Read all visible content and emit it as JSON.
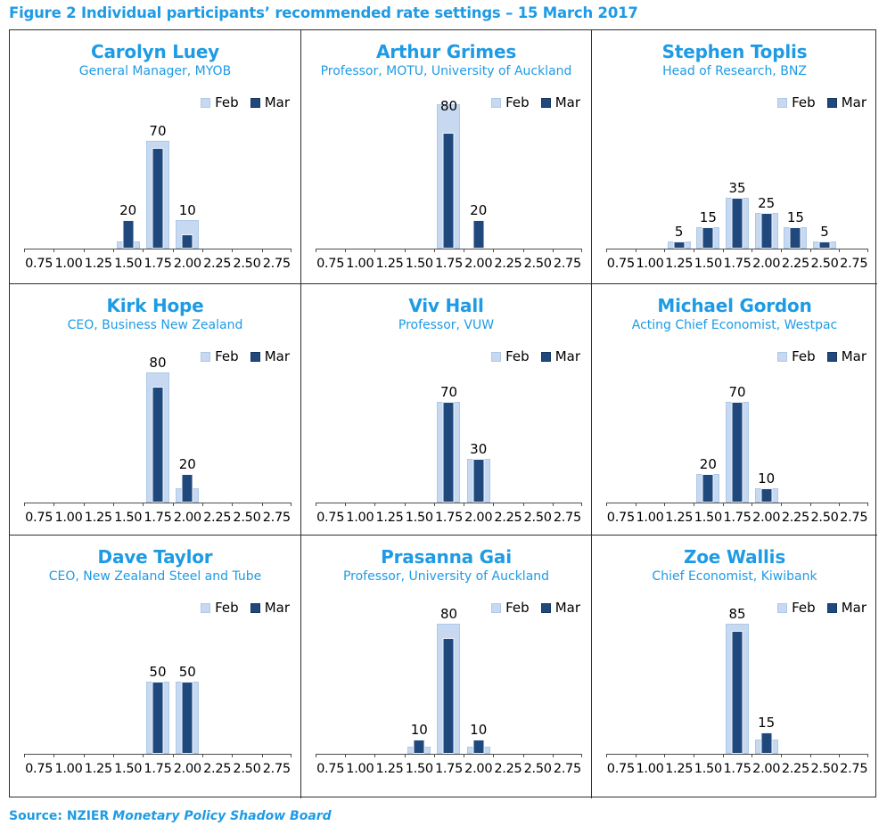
{
  "page_title": "Figure 2 Individual participants’ recommended rate settings – 15 March 2017",
  "source": {
    "prefix": "Source: NZIER",
    "publication": "Monetary Policy Shadow Board"
  },
  "legend": {
    "feb_label": "Feb",
    "mar_label": "Mar"
  },
  "colors": {
    "heading_blue": "#1e9be4",
    "feb_fill": "#c6d9f1",
    "feb_border": "#aec8e8",
    "mar_fill": "#1f497d",
    "mar_border": "#f0f5fc",
    "axis": "#4d4d4d",
    "grid_border": "#2e2e2e"
  },
  "chart_data": [
    {
      "type": "bar",
      "title": "Carolyn Luey",
      "subtitle": "General Manager, MYOB",
      "categories": [
        "0.75",
        "1.00",
        "1.25",
        "1.50",
        "1.75",
        "2.00",
        "2.25",
        "2.50",
        "2.75"
      ],
      "xlabel": "",
      "ylabel": "",
      "ylim": [
        0,
        100
      ],
      "grid": false,
      "legend_position": "top-right",
      "series": [
        {
          "name": "Feb",
          "values": [
            0,
            0,
            0,
            5,
            75,
            20,
            0,
            0,
            0
          ]
        },
        {
          "name": "Mar",
          "values": [
            0,
            0,
            0,
            20,
            70,
            10,
            0,
            0,
            0
          ]
        }
      ],
      "bar_labels": [
        null,
        null,
        null,
        "20",
        "70",
        "10",
        null,
        null,
        null
      ]
    },
    {
      "type": "bar",
      "title": "Arthur Grimes",
      "subtitle": "Professor, MOTU, University of Auckland",
      "categories": [
        "0.75",
        "1.00",
        "1.25",
        "1.50",
        "1.75",
        "2.00",
        "2.25",
        "2.50",
        "2.75"
      ],
      "xlabel": "",
      "ylabel": "",
      "ylim": [
        0,
        100
      ],
      "grid": false,
      "legend_position": "top-right",
      "series": [
        {
          "name": "Feb",
          "values": [
            0,
            0,
            0,
            0,
            100,
            0,
            0,
            0,
            0
          ]
        },
        {
          "name": "Mar",
          "values": [
            0,
            0,
            0,
            0,
            80,
            20,
            0,
            0,
            0
          ]
        }
      ],
      "bar_labels": [
        null,
        null,
        null,
        null,
        "80",
        "20",
        null,
        null,
        null
      ]
    },
    {
      "type": "bar",
      "title": "Stephen Toplis",
      "subtitle": "Head of Research, BNZ",
      "categories": [
        "0.75",
        "1.00",
        "1.25",
        "1.50",
        "1.75",
        "2.00",
        "2.25",
        "2.50",
        "2.75"
      ],
      "xlabel": "",
      "ylabel": "",
      "ylim": [
        0,
        100
      ],
      "grid": false,
      "legend_position": "top-right",
      "series": [
        {
          "name": "Feb",
          "values": [
            0,
            0,
            5,
            15,
            35,
            25,
            15,
            5,
            0
          ]
        },
        {
          "name": "Mar",
          "values": [
            0,
            0,
            5,
            15,
            35,
            25,
            15,
            5,
            0
          ]
        }
      ],
      "bar_labels": [
        null,
        null,
        "5",
        "15",
        "35",
        "25",
        "15",
        "5",
        null
      ]
    },
    {
      "type": "bar",
      "title": "Kirk Hope",
      "subtitle": "CEO, Business New Zealand",
      "categories": [
        "0.75",
        "1.00",
        "1.25",
        "1.50",
        "1.75",
        "2.00",
        "2.25",
        "2.50",
        "2.75"
      ],
      "xlabel": "",
      "ylabel": "",
      "ylim": [
        0,
        100
      ],
      "grid": false,
      "legend_position": "top-right",
      "series": [
        {
          "name": "Feb",
          "values": [
            0,
            0,
            0,
            0,
            90,
            10,
            0,
            0,
            0
          ]
        },
        {
          "name": "Mar",
          "values": [
            0,
            0,
            0,
            0,
            80,
            20,
            0,
            0,
            0
          ]
        }
      ],
      "bar_labels": [
        null,
        null,
        null,
        null,
        "80",
        "20",
        null,
        null,
        null
      ]
    },
    {
      "type": "bar",
      "title": "Viv Hall",
      "subtitle": "Professor, VUW",
      "categories": [
        "0.75",
        "1.00",
        "1.25",
        "1.50",
        "1.75",
        "2.00",
        "2.25",
        "2.50",
        "2.75"
      ],
      "xlabel": "",
      "ylabel": "",
      "ylim": [
        0,
        100
      ],
      "grid": false,
      "legend_position": "top-right",
      "series": [
        {
          "name": "Feb",
          "values": [
            0,
            0,
            0,
            0,
            70,
            30,
            0,
            0,
            0
          ]
        },
        {
          "name": "Mar",
          "values": [
            0,
            0,
            0,
            0,
            70,
            30,
            0,
            0,
            0
          ]
        }
      ],
      "bar_labels": [
        null,
        null,
        null,
        null,
        "70",
        "30",
        null,
        null,
        null
      ]
    },
    {
      "type": "bar",
      "title": "Michael Gordon",
      "subtitle": "Acting Chief Economist, Westpac",
      "categories": [
        "0.75",
        "1.00",
        "1.25",
        "1.50",
        "1.75",
        "2.00",
        "2.25",
        "2.50",
        "2.75"
      ],
      "xlabel": "",
      "ylabel": "",
      "ylim": [
        0,
        100
      ],
      "grid": false,
      "legend_position": "top-right",
      "series": [
        {
          "name": "Feb",
          "values": [
            0,
            0,
            0,
            20,
            70,
            10,
            0,
            0,
            0
          ]
        },
        {
          "name": "Mar",
          "values": [
            0,
            0,
            0,
            20,
            70,
            10,
            0,
            0,
            0
          ]
        }
      ],
      "bar_labels": [
        null,
        null,
        null,
        "20",
        "70",
        "10",
        null,
        null,
        null
      ]
    },
    {
      "type": "bar",
      "title": "Dave Taylor",
      "subtitle": "CEO, New Zealand Steel and Tube",
      "categories": [
        "0.75",
        "1.00",
        "1.25",
        "1.50",
        "1.75",
        "2.00",
        "2.25",
        "2.50",
        "2.75"
      ],
      "xlabel": "",
      "ylabel": "",
      "ylim": [
        0,
        100
      ],
      "grid": false,
      "legend_position": "top-right",
      "series": [
        {
          "name": "Feb",
          "values": [
            0,
            0,
            0,
            0,
            50,
            50,
            0,
            0,
            0
          ]
        },
        {
          "name": "Mar",
          "values": [
            0,
            0,
            0,
            0,
            50,
            50,
            0,
            0,
            0
          ]
        }
      ],
      "bar_labels": [
        null,
        null,
        null,
        null,
        "50",
        "50",
        null,
        null,
        null
      ]
    },
    {
      "type": "bar",
      "title": "Prasanna Gai",
      "subtitle": "Professor, University of Auckland",
      "categories": [
        "0.75",
        "1.00",
        "1.25",
        "1.50",
        "1.75",
        "2.00",
        "2.25",
        "2.50",
        "2.75"
      ],
      "xlabel": "",
      "ylabel": "",
      "ylim": [
        0,
        100
      ],
      "grid": false,
      "legend_position": "top-right",
      "series": [
        {
          "name": "Feb",
          "values": [
            0,
            0,
            0,
            5,
            90,
            5,
            0,
            0,
            0
          ]
        },
        {
          "name": "Mar",
          "values": [
            0,
            0,
            0,
            10,
            80,
            10,
            0,
            0,
            0
          ]
        }
      ],
      "bar_labels": [
        null,
        null,
        null,
        "10",
        "80",
        "10",
        null,
        null,
        null
      ]
    },
    {
      "type": "bar",
      "title": "Zoe Wallis",
      "subtitle": "Chief Economist, Kiwibank",
      "categories": [
        "0.75",
        "1.00",
        "1.25",
        "1.50",
        "1.75",
        "2.00",
        "2.25",
        "2.50",
        "2.75"
      ],
      "xlabel": "",
      "ylabel": "",
      "ylim": [
        0,
        100
      ],
      "grid": false,
      "legend_position": "top-right",
      "series": [
        {
          "name": "Feb",
          "values": [
            0,
            0,
            0,
            0,
            90,
            10,
            0,
            0,
            0
          ]
        },
        {
          "name": "Mar",
          "values": [
            0,
            0,
            0,
            0,
            85,
            15,
            0,
            0,
            0
          ]
        }
      ],
      "bar_labels": [
        null,
        null,
        null,
        null,
        "85",
        "15",
        null,
        null,
        null
      ]
    }
  ]
}
